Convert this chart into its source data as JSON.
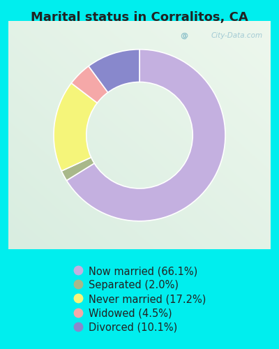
{
  "title": "Marital status in Corralitos, CA",
  "slices": [
    {
      "label": "Now married (66.1%)",
      "value": 66.1,
      "color": "#C4B0E0"
    },
    {
      "label": "Separated (2.0%)",
      "value": 2.0,
      "color": "#A8B88A"
    },
    {
      "label": "Never married (17.2%)",
      "value": 17.2,
      "color": "#F5F57A"
    },
    {
      "label": "Widowed (4.5%)",
      "value": 4.5,
      "color": "#F5A8A8"
    },
    {
      "label": "Divorced (10.1%)",
      "value": 10.1,
      "color": "#8888CC"
    }
  ],
  "background_color": "#00EEEE",
  "chart_bg_topleft": "#D8EED8",
  "chart_bg_bottomright": "#E8F8F0",
  "watermark": "City-Data.com",
  "title_fontsize": 13,
  "legend_fontsize": 10.5,
  "title_color": "#222222"
}
